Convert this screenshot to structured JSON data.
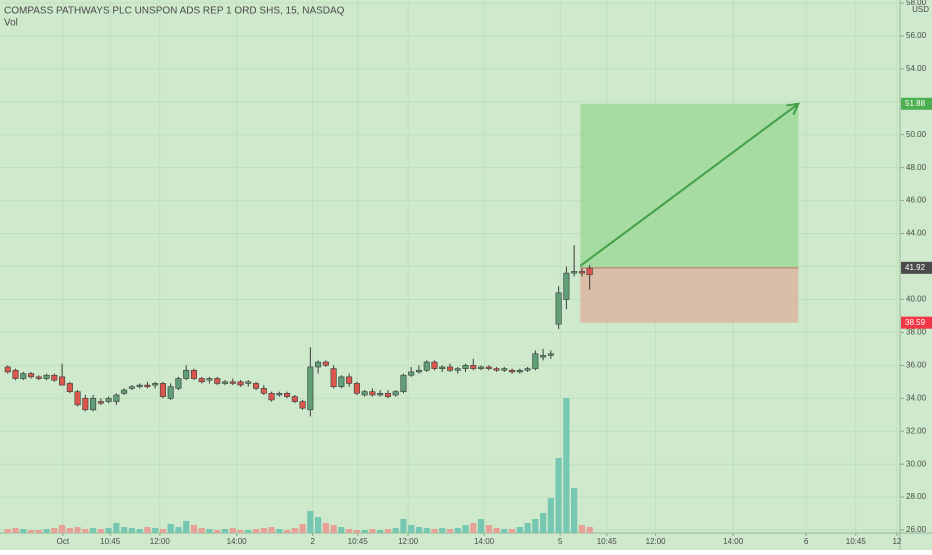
{
  "chart_data": {
    "type": "candlestick",
    "title": "COMPASS PATHWAYS PLC UNSPON ADS REP 1 ORD SHS, 15, NASDAQ",
    "volume_label": "Vol",
    "currency": "USD",
    "up_color": "#5f9e77",
    "down_color": "#d9574c",
    "volume_up_color": "#76c7b1",
    "volume_down_color": "#e8a196",
    "grid": true,
    "xlim": [
      -1,
      115
    ],
    "ylim": [
      25.82,
      58.18
    ],
    "yticks": [
      {
        "value": 26,
        "label": "26.00"
      },
      {
        "value": 28,
        "label": "28.00"
      },
      {
        "value": 30,
        "label": "30.00"
      },
      {
        "value": 32,
        "label": "32.00"
      },
      {
        "value": 34,
        "label": "34.00"
      },
      {
        "value": 36,
        "label": "36.00"
      },
      {
        "value": 38,
        "label": "38.00"
      },
      {
        "value": 40,
        "label": "40.00"
      },
      {
        "value": 42,
        "label": "42.00"
      },
      {
        "value": 44,
        "label": "44.00"
      },
      {
        "value": 46,
        "label": "46.00"
      },
      {
        "value": 48,
        "label": "48.00"
      },
      {
        "value": 50,
        "label": "50.00"
      },
      {
        "value": 52,
        "label": "52.00"
      },
      {
        "value": 54,
        "label": "54.00"
      },
      {
        "value": 56,
        "label": "56.00"
      },
      {
        "value": 58,
        "label": "58.00"
      }
    ],
    "xticks": [
      {
        "value": 7.1,
        "label": "Oct"
      },
      {
        "value": 13.2,
        "label": "10:45"
      },
      {
        "value": 19.6,
        "label": "12:00"
      },
      {
        "value": 29.5,
        "label": "14:00"
      },
      {
        "value": 39.3,
        "label": "2"
      },
      {
        "value": 45.1,
        "label": "10:45"
      },
      {
        "value": 51.6,
        "label": "12:00"
      },
      {
        "value": 61.4,
        "label": "14:00"
      },
      {
        "value": 71.2,
        "label": "5"
      },
      {
        "value": 77.2,
        "label": "10:45"
      },
      {
        "value": 83.5,
        "label": "12:00"
      },
      {
        "value": 93.5,
        "label": "14:00"
      },
      {
        "value": 102.9,
        "label": "6"
      },
      {
        "value": 109.3,
        "label": "10:45"
      },
      {
        "value": 114.6,
        "label": "12"
      }
    ],
    "open": [
      35.9,
      35.7,
      35.2,
      35.5,
      35.3,
      35.2,
      35.4,
      35.3,
      34.9,
      34.4,
      34.0,
      33.3,
      33.8,
      33.8,
      33.8,
      34.3,
      34.6,
      34.7,
      34.8,
      34.8,
      34.9,
      34.0,
      34.6,
      35.2,
      35.7,
      35.2,
      35.1,
      35.2,
      34.9,
      35.0,
      35.0,
      34.9,
      34.9,
      34.6,
      34.3,
      34.2,
      34.3,
      34.1,
      33.8,
      33.3,
      35.9,
      36.2,
      35.8,
      34.7,
      35.3,
      34.9,
      34.2,
      34.4,
      34.2,
      34.3,
      34.2,
      34.4,
      35.4,
      35.6,
      35.7,
      36.2,
      35.8,
      35.9,
      35.7,
      35.8,
      36.0,
      35.8,
      35.9,
      35.8,
      35.7,
      35.7,
      35.6,
      35.7,
      35.8,
      36.5,
      36.6,
      38.5,
      40.0,
      41.6,
      41.7,
      41.9
    ],
    "high": [
      36.0,
      35.8,
      35.6,
      35.6,
      35.4,
      35.5,
      35.5,
      36.1,
      35.0,
      34.5,
      34.2,
      34.2,
      34.0,
      34.1,
      34.3,
      34.6,
      34.8,
      34.9,
      35.0,
      35.0,
      35.0,
      34.9,
      35.3,
      36.0,
      35.8,
      35.3,
      35.3,
      35.3,
      35.1,
      35.2,
      35.1,
      35.1,
      35.0,
      34.8,
      34.4,
      34.4,
      34.4,
      34.2,
      33.9,
      37.1,
      36.3,
      36.3,
      36.0,
      35.4,
      35.5,
      35.0,
      34.5,
      34.6,
      34.5,
      34.5,
      34.5,
      35.5,
      35.9,
      36.0,
      36.3,
      36.3,
      36.0,
      36.1,
      35.9,
      36.1,
      36.4,
      36.0,
      36.0,
      35.9,
      35.9,
      35.8,
      35.8,
      35.9,
      36.9,
      37.0,
      36.9,
      40.8,
      42.0,
      43.3,
      41.9,
      42.1
    ],
    "low": [
      35.5,
      35.1,
      35.1,
      35.2,
      35.1,
      35.1,
      35.0,
      34.8,
      34.3,
      33.5,
      33.2,
      33.2,
      33.6,
      33.7,
      33.6,
      34.2,
      34.5,
      34.6,
      34.6,
      34.6,
      34.0,
      33.9,
      34.5,
      35.1,
      35.1,
      34.9,
      34.9,
      34.8,
      34.8,
      34.8,
      34.7,
      34.7,
      34.5,
      34.2,
      33.8,
      34.1,
      34.0,
      33.7,
      33.3,
      32.9,
      35.5,
      35.9,
      34.6,
      34.6,
      34.7,
      34.2,
      34.1,
      34.1,
      34.1,
      34.0,
      34.1,
      34.3,
      35.3,
      35.5,
      35.6,
      35.7,
      35.6,
      35.6,
      35.5,
      35.6,
      35.7,
      35.7,
      35.7,
      35.6,
      35.6,
      35.5,
      35.5,
      35.6,
      35.7,
      36.3,
      36.4,
      38.2,
      39.4,
      41.4,
      41.4,
      40.6
    ],
    "close": [
      35.6,
      35.2,
      35.5,
      35.3,
      35.2,
      35.4,
      35.1,
      34.8,
      34.4,
      33.6,
      33.3,
      34.0,
      33.7,
      34.0,
      34.2,
      34.5,
      34.7,
      34.8,
      34.7,
      34.9,
      34.1,
      34.7,
      35.2,
      35.7,
      35.2,
      35.0,
      35.2,
      34.9,
      35.0,
      34.9,
      34.8,
      35.0,
      34.6,
      34.3,
      33.9,
      34.3,
      34.1,
      33.8,
      33.4,
      35.9,
      36.2,
      36.0,
      34.7,
      35.3,
      34.9,
      34.3,
      34.4,
      34.2,
      34.3,
      34.1,
      34.4,
      35.4,
      35.6,
      35.7,
      36.2,
      35.8,
      35.9,
      35.7,
      35.8,
      36.0,
      35.8,
      35.9,
      35.8,
      35.7,
      35.8,
      35.6,
      35.7,
      35.8,
      36.7,
      36.6,
      36.7,
      40.4,
      41.6,
      41.7,
      41.6,
      41.5
    ],
    "volumes": [
      4,
      5,
      4,
      3,
      3,
      4,
      5,
      8,
      5,
      6,
      4,
      5,
      4,
      5,
      10,
      6,
      5,
      4,
      6,
      5,
      4,
      9,
      6,
      12,
      8,
      5,
      4,
      3,
      4,
      5,
      3,
      3,
      4,
      5,
      6,
      4,
      3,
      5,
      9,
      22,
      16,
      10,
      8,
      6,
      4,
      3,
      3,
      4,
      3,
      4,
      5,
      14,
      8,
      6,
      5,
      4,
      5,
      4,
      5,
      8,
      10,
      14,
      8,
      5,
      4,
      4,
      6,
      10,
      14,
      20,
      35,
      75,
      135,
      45,
      8,
      6
    ],
    "position": {
      "entry": 41.92,
      "target": 51.88,
      "stop": 38.59,
      "x_start": 73.8,
      "x_end": 101.9,
      "profit_color": "#9fd89a",
      "loss_color": "#d9b8a3",
      "arrow_color": "#43a047",
      "target_color": "#4caf50",
      "entry_color": "#4a4a4a",
      "stop_color": "#f23645"
    }
  }
}
